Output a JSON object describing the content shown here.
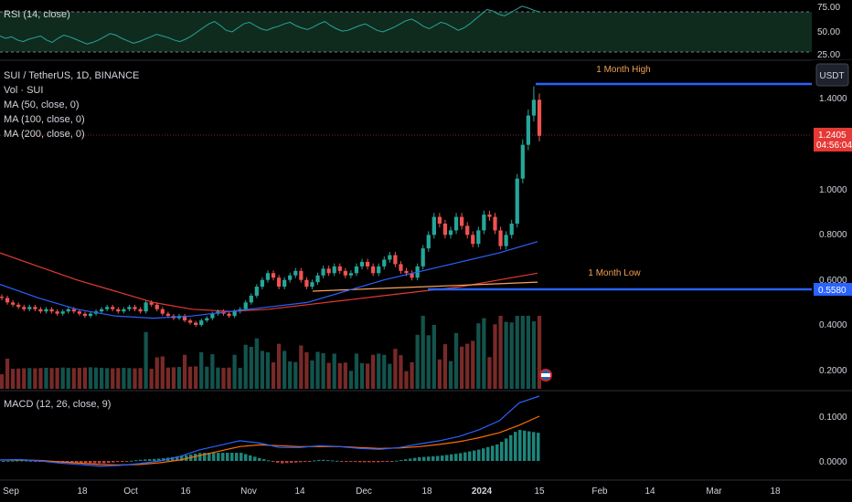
{
  "rsi": {
    "label": "RSI (14, close)",
    "ticks": [
      75.0,
      50.0,
      25.0
    ],
    "tick_labels": [
      "75.00",
      "50.00",
      "25.00"
    ]
  },
  "legend": {
    "symbol": "SUI / TetherUS, 1D, BINANCE",
    "volume": "Vol · SUI",
    "ma50": "MA (50, close, 0)",
    "ma100": "MA (100, close, 0)",
    "ma200": "MA (200, close, 0)"
  },
  "price_axis": {
    "currency_button": "USDT",
    "ticks": [
      "1.4000",
      "1.0000",
      "0.8000",
      "0.6000",
      "0.4000",
      "0.2000"
    ],
    "last_price": "1.2405",
    "countdown": "04:56:04",
    "low_label": "0.5580"
  },
  "annotations": {
    "high": "1 Month High",
    "low": "1 Month Low"
  },
  "macd": {
    "label": "MACD (12, 26, close, 9)",
    "ticks": [
      "0.1000",
      "0.0000"
    ]
  },
  "time_axis": {
    "labels": [
      "Sep",
      "18",
      "Oct",
      "16",
      "Nov",
      "14",
      "Dec",
      "18",
      "2024",
      "15",
      "Feb",
      "14",
      "Mar",
      "18"
    ]
  },
  "colors": {
    "up": "#26a69a",
    "down": "#ef5350",
    "ma50": "#2962ff",
    "ma100": "#f7a35c",
    "ma200": "#e53935",
    "level": "#2962ff",
    "rsi": "#26a69a"
  },
  "chart_data": {
    "type": "candlestick",
    "symbol": "SUI/USDT",
    "interval": "1D",
    "approx_closes": [
      0.52,
      0.5,
      0.49,
      0.48,
      0.47,
      0.48,
      0.47,
      0.46,
      0.47,
      0.46,
      0.45,
      0.46,
      0.47,
      0.46,
      0.45,
      0.44,
      0.45,
      0.46,
      0.47,
      0.48,
      0.47,
      0.46,
      0.47,
      0.48,
      0.47,
      0.46,
      0.5,
      0.49,
      0.47,
      0.45,
      0.44,
      0.43,
      0.44,
      0.42,
      0.41,
      0.4,
      0.42,
      0.43,
      0.45,
      0.46,
      0.45,
      0.44,
      0.46,
      0.47,
      0.5,
      0.53,
      0.57,
      0.6,
      0.63,
      0.61,
      0.57,
      0.6,
      0.62,
      0.64,
      0.6,
      0.57,
      0.59,
      0.62,
      0.65,
      0.63,
      0.66,
      0.64,
      0.62,
      0.63,
      0.66,
      0.68,
      0.66,
      0.63,
      0.66,
      0.69,
      0.71,
      0.67,
      0.64,
      0.63,
      0.61,
      0.66,
      0.74,
      0.8,
      0.88,
      0.85,
      0.8,
      0.82,
      0.88,
      0.84,
      0.8,
      0.76,
      0.82,
      0.89,
      0.88,
      0.82,
      0.75,
      0.8,
      0.85,
      1.05,
      1.2,
      1.33,
      1.4,
      1.24
    ],
    "ma50": [
      0.58,
      0.52,
      0.47,
      0.44,
      0.43,
      0.44,
      0.46,
      0.48,
      0.5,
      0.55,
      0.6,
      0.64,
      0.68,
      0.72,
      0.77
    ],
    "ma100": [
      0.55,
      0.56,
      0.57,
      0.58,
      0.59
    ],
    "ma200": [
      0.72,
      0.66,
      0.6,
      0.55,
      0.5,
      0.47,
      0.46,
      0.47,
      0.49,
      0.51,
      0.53,
      0.55,
      0.57,
      0.6,
      0.63
    ],
    "one_month_high": 1.46,
    "one_month_low": 0.558,
    "last_price": 1.2405,
    "y_range": [
      0.2,
      1.5
    ],
    "rsi_range": [
      25,
      75
    ],
    "rsi_values": [
      45,
      42,
      44,
      40,
      38,
      41,
      43,
      45,
      40,
      37,
      42,
      46,
      44,
      41,
      38,
      35,
      37,
      40,
      44,
      48,
      46,
      42,
      39,
      36,
      38,
      41,
      44,
      47,
      45,
      43,
      40,
      38,
      41,
      45,
      50,
      55,
      60,
      63,
      58,
      52,
      50,
      55,
      60,
      62,
      58,
      54,
      52,
      55,
      57,
      60,
      62,
      58,
      55,
      53,
      56,
      60,
      63,
      58,
      54,
      51,
      52,
      55,
      58,
      60,
      56,
      52,
      50,
      53,
      56,
      60,
      64,
      66,
      62,
      57,
      54,
      58,
      62,
      60,
      56,
      52,
      55,
      60,
      66,
      72,
      78,
      76,
      72,
      70,
      74,
      78,
      82,
      80,
      77,
      75
    ],
    "macd_range": [
      -0.01,
      0.14
    ],
    "macd_line": [
      0.002,
      0.003,
      0.0,
      -0.005,
      -0.008,
      -0.012,
      -0.01,
      -0.006,
      0.0,
      0.01,
      0.025,
      0.035,
      0.045,
      0.04,
      0.03,
      0.03,
      0.034,
      0.032,
      0.028,
      0.026,
      0.03,
      0.038,
      0.045,
      0.055,
      0.07,
      0.09,
      0.13,
      0.145
    ],
    "macd_signal": [
      0.002,
      0.002,
      0.001,
      -0.002,
      -0.005,
      -0.008,
      -0.009,
      -0.008,
      -0.004,
      0.002,
      0.012,
      0.022,
      0.032,
      0.036,
      0.034,
      0.032,
      0.032,
      0.032,
      0.03,
      0.028,
      0.029,
      0.032,
      0.037,
      0.043,
      0.052,
      0.063,
      0.08,
      0.1
    ],
    "x_labels": [
      "Sep",
      "18",
      "Oct",
      "16",
      "Nov",
      "14",
      "Dec",
      "18",
      "2024",
      "15",
      "Feb",
      "14",
      "Mar",
      "18"
    ]
  }
}
